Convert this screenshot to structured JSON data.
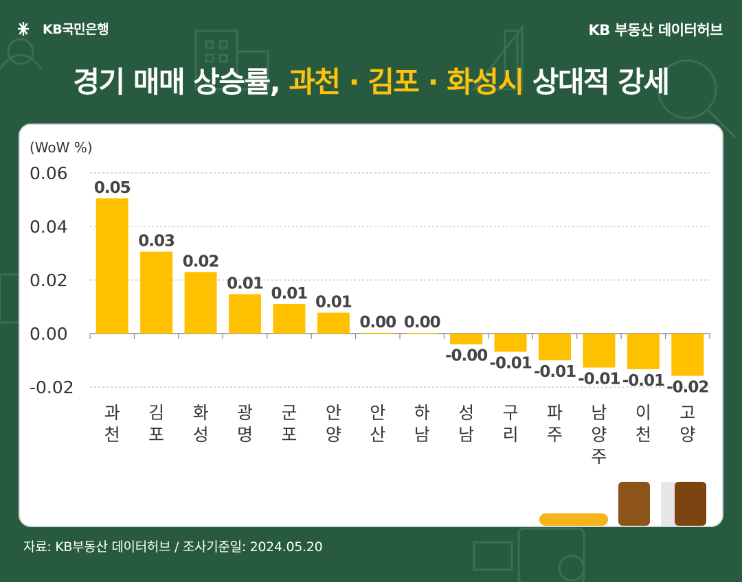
{
  "header": {
    "brand_name": "KB국민은행",
    "hub_label": "KB 부동산  데이터허브"
  },
  "headline": {
    "prefix": "경기 매매 상승률, ",
    "highlight": "과천 · 김포 · 화성시",
    "suffix": " 상대적 강세"
  },
  "chart_data": {
    "type": "bar",
    "unit_label": "(WoW %)",
    "categories": [
      "과천",
      "김포",
      "화성",
      "광명",
      "군포",
      "안양",
      "안산",
      "하남",
      "성남",
      "구리",
      "파주",
      "남양주",
      "이천",
      "고양"
    ],
    "values": [
      0.0505,
      0.0306,
      0.023,
      0.0147,
      0.011,
      0.0078,
      0.0003,
      0.0002,
      -0.004,
      -0.0068,
      -0.01,
      -0.0127,
      -0.0133,
      -0.0158
    ],
    "value_labels": [
      "0.05",
      "0.03",
      "0.02",
      "0.01",
      "0.01",
      "0.01",
      "0.00",
      "0.00",
      "-0.00",
      "-0.01",
      "-0.01",
      "-0.01",
      "-0.01",
      "-0.02"
    ],
    "yticks": [
      "0.06",
      "0.04",
      "0.02",
      "0.00",
      "-0.02"
    ],
    "ylim": [
      -0.02,
      0.06
    ],
    "grid": true,
    "bar_color": "#ffc000"
  },
  "footer": {
    "source": "자료: KB부동산 데이터허브 / 조사기준일: 2024.05.20"
  },
  "colors": {
    "background": "#285a40",
    "accent": "#ffc20e",
    "bar": "#ffc000"
  }
}
